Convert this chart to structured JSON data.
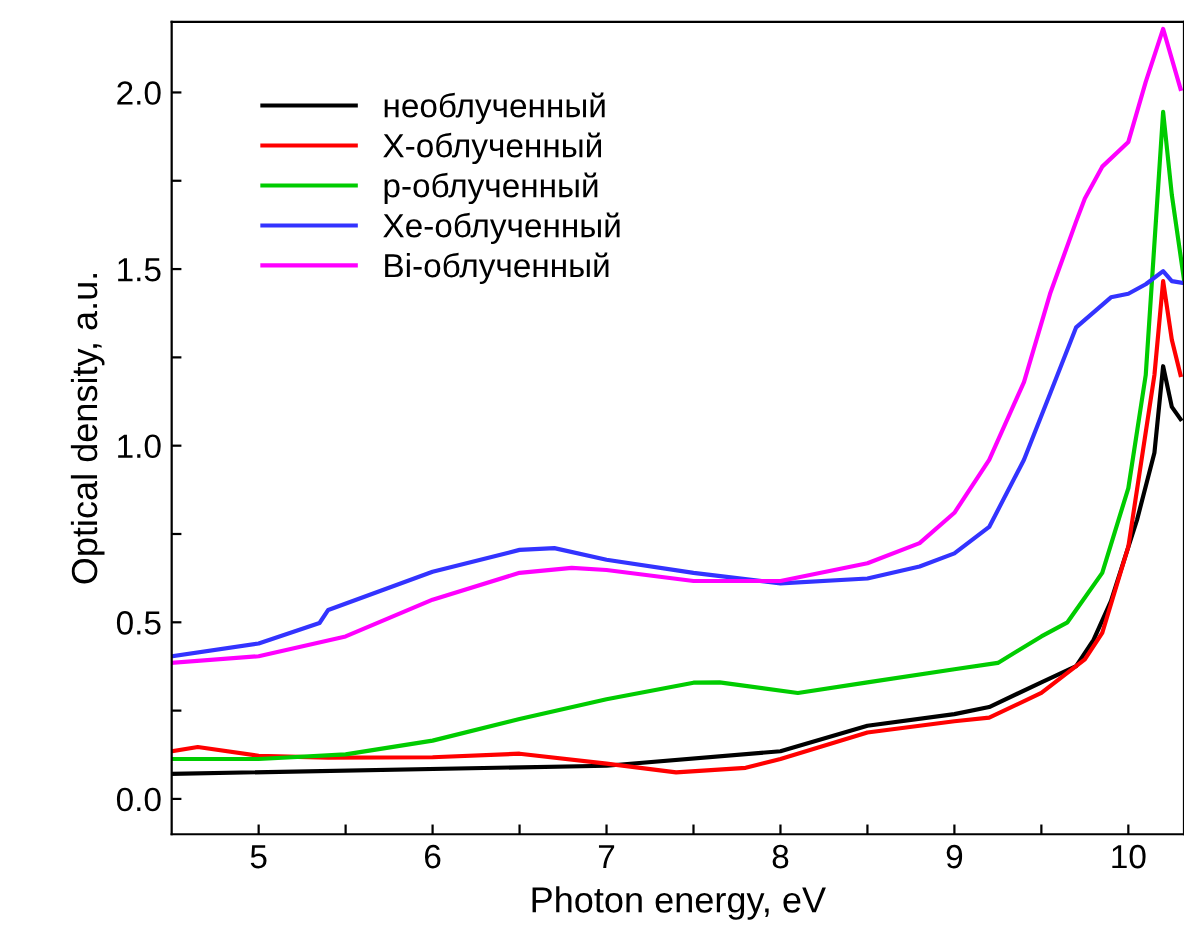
{
  "chart_data": {
    "type": "line",
    "xlabel": "Photon energy, eV",
    "ylabel": "Optical density, a.u.",
    "xlim": [
      4.5,
      10.32
    ],
    "ylim": [
      -0.1,
      2.2
    ],
    "xticks": [
      5,
      {
        "value": 5.5,
        "label": null
      },
      6,
      {
        "value": 6.5,
        "label": null
      },
      7,
      {
        "value": 7.5,
        "label": null
      },
      8,
      {
        "value": 8.5,
        "label": null
      },
      9,
      {
        "value": 9.5,
        "label": null
      },
      10
    ],
    "yticks": [
      {
        "value": 0,
        "label": "0.0"
      },
      {
        "value": 0.25,
        "label": null
      },
      0.5,
      {
        "value": 0.75,
        "label": null
      },
      {
        "value": 1,
        "label": "1.0"
      },
      {
        "value": 1.25,
        "label": null
      },
      1.5,
      {
        "value": 1.75,
        "label": null
      },
      {
        "value": 2,
        "label": "2.0"
      }
    ],
    "legend": "top left",
    "grid": false,
    "series": [
      {
        "name": "необлученный",
        "color": "#000000",
        "x": [
          4.5,
          7,
          8,
          8.5,
          9,
          9.2,
          9.5,
          9.7,
          9.8,
          9.9,
          10.05,
          10.15,
          10.2,
          10.25,
          10.3
        ],
        "values": [
          0.071,
          0.094,
          0.135,
          0.207,
          0.24,
          0.26,
          0.33,
          0.376,
          0.45,
          0.56,
          0.79,
          0.98,
          1.225,
          1.11,
          1.075
        ]
      },
      {
        "name": "X-облученный",
        "color": "#ff0000",
        "x": [
          4.5,
          4.65,
          5,
          5.4,
          6,
          6.5,
          7,
          7.4,
          7.8,
          8,
          8.5,
          9,
          9.2,
          9.5,
          9.75,
          9.85,
          10,
          10.15,
          10.2,
          10.25,
          10.3
        ],
        "values": [
          0.135,
          0.147,
          0.122,
          0.117,
          0.118,
          0.128,
          0.1,
          0.075,
          0.088,
          0.113,
          0.188,
          0.22,
          0.23,
          0.3,
          0.395,
          0.47,
          0.714,
          1.2,
          1.466,
          1.3,
          1.2
        ]
      },
      {
        "name": "p-облученный",
        "color": "#00cc00",
        "x": [
          4.5,
          5,
          5.5,
          6,
          6.5,
          7,
          7.5,
          7.65,
          8.1,
          8.5,
          9,
          9.25,
          9.5,
          9.65,
          9.85,
          10,
          10.1,
          10.2,
          10.25,
          10.32
        ],
        "values": [
          0.113,
          0.113,
          0.126,
          0.165,
          0.226,
          0.282,
          0.329,
          0.33,
          0.3,
          0.33,
          0.367,
          0.385,
          0.46,
          0.5,
          0.64,
          0.88,
          1.2,
          1.945,
          1.71,
          1.47
        ]
      },
      {
        "name": "Xe-облученный",
        "color": "#3333ff",
        "x": [
          4.5,
          5,
          5.35,
          5.4,
          6,
          6.5,
          6.7,
          7,
          7.5,
          8,
          8.5,
          8.8,
          9,
          9.2,
          9.4,
          9.55,
          9.7,
          9.9,
          10,
          10.1,
          10.2,
          10.25,
          10.32
        ],
        "values": [
          0.404,
          0.44,
          0.498,
          0.535,
          0.643,
          0.705,
          0.71,
          0.677,
          0.64,
          0.61,
          0.624,
          0.658,
          0.695,
          0.77,
          0.96,
          1.147,
          1.335,
          1.42,
          1.43,
          1.457,
          1.494,
          1.466,
          1.46
        ]
      },
      {
        "name": "Bi-облученный",
        "color": "#ff00ff",
        "x": [
          4.5,
          5,
          5.5,
          6,
          6.5,
          6.8,
          7,
          7.5,
          8,
          8.5,
          8.8,
          9,
          9.2,
          9.4,
          9.55,
          9.7,
          9.75,
          9.85,
          10,
          10.1,
          10.2,
          10.3
        ],
        "values": [
          0.385,
          0.404,
          0.46,
          0.564,
          0.64,
          0.654,
          0.648,
          0.617,
          0.617,
          0.667,
          0.724,
          0.81,
          0.96,
          1.18,
          1.43,
          1.635,
          1.7,
          1.79,
          1.86,
          2.03,
          2.18,
          2.01
        ]
      }
    ]
  }
}
